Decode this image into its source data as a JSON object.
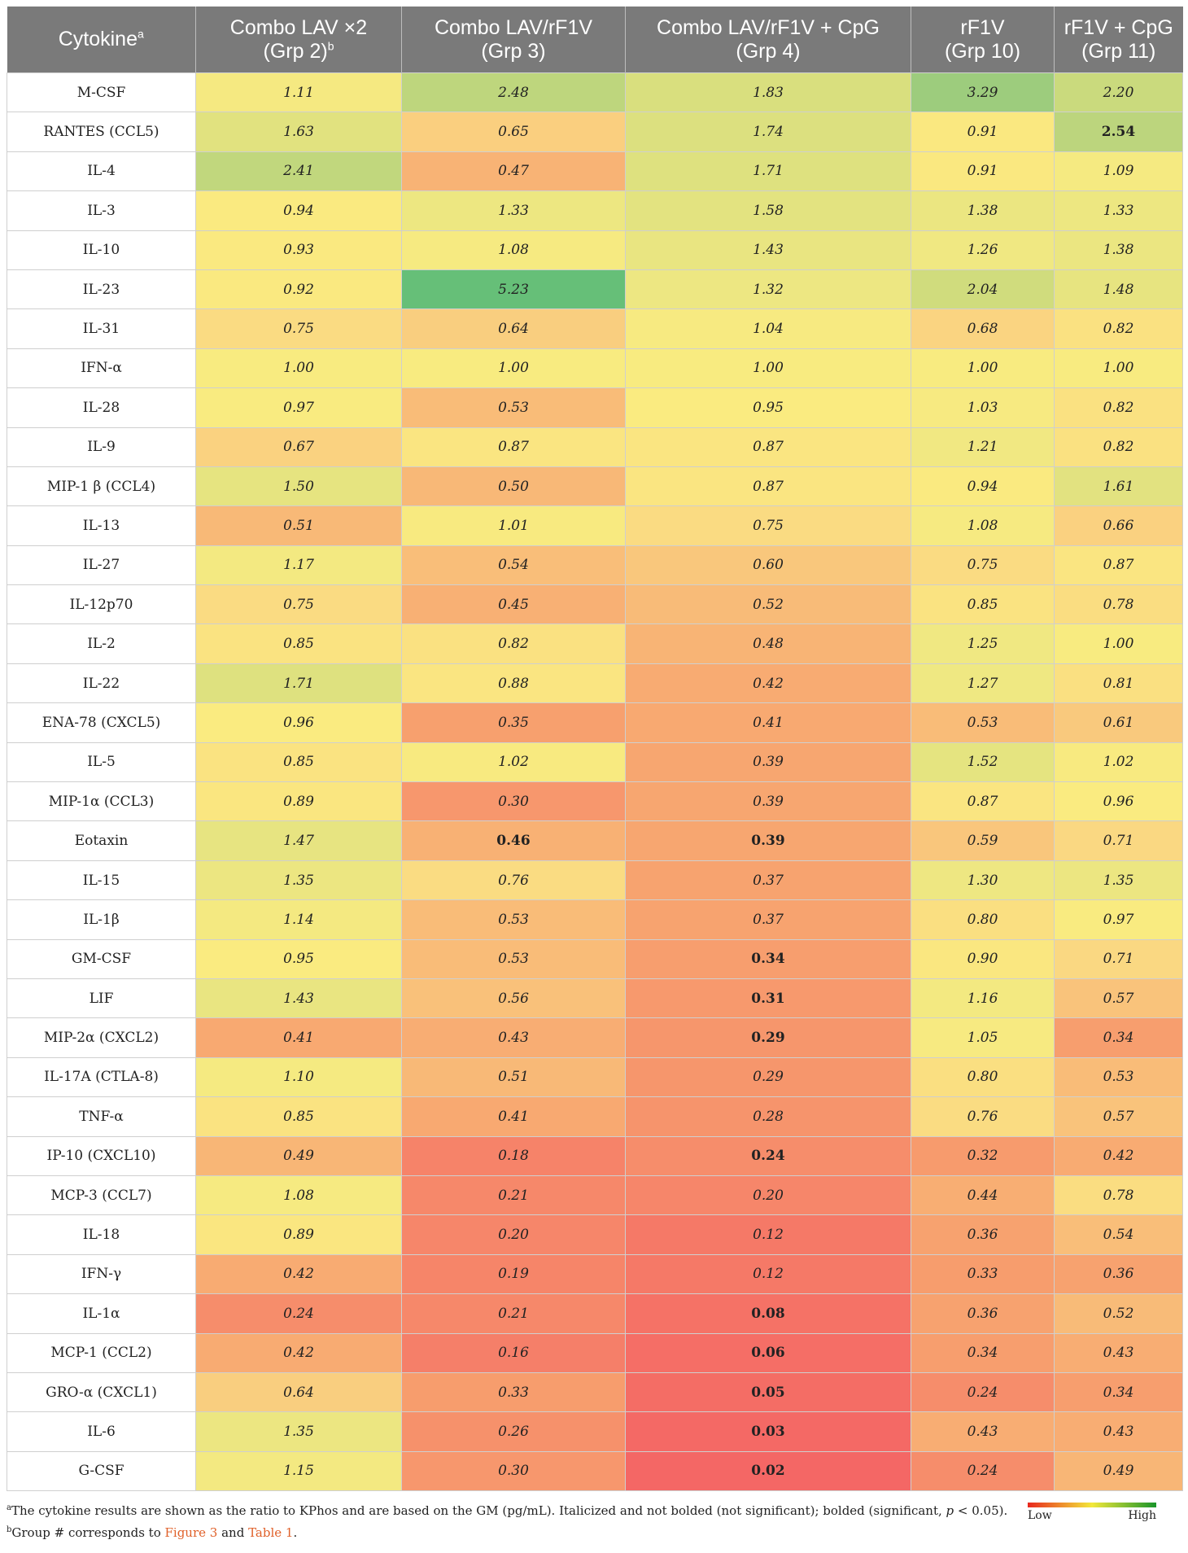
{
  "columns": [
    {
      "line1": "Cytokine",
      "line2": "",
      "sup": "a"
    },
    {
      "line1": "Combo LAV ×2",
      "line2": "(Grp 2)",
      "sup": "b"
    },
    {
      "line1": "Combo LAV/rF1V",
      "line2": "(Grp 3)",
      "sup": ""
    },
    {
      "line1": "Combo LAV/rF1V + CpG",
      "line2": "(Grp 4)",
      "sup": ""
    },
    {
      "line1": "rF1V",
      "line2": "(Grp 10)",
      "sup": ""
    },
    {
      "line1": "rF1V + CpG",
      "line2": "(Grp 11)",
      "sup": ""
    }
  ],
  "rows": [
    {
      "name": "M-CSF",
      "values": [
        1.11,
        2.48,
        1.83,
        3.29,
        2.2
      ],
      "bold": [
        false,
        false,
        false,
        false,
        false
      ]
    },
    {
      "name": "RANTES (CCL5)",
      "values": [
        1.63,
        0.65,
        1.74,
        0.91,
        2.54
      ],
      "bold": [
        false,
        false,
        false,
        false,
        true
      ]
    },
    {
      "name": "IL-4",
      "values": [
        2.41,
        0.47,
        1.71,
        0.91,
        1.09
      ],
      "bold": [
        false,
        false,
        false,
        false,
        false
      ]
    },
    {
      "name": "IL-3",
      "values": [
        0.94,
        1.33,
        1.58,
        1.38,
        1.33
      ],
      "bold": [
        false,
        false,
        false,
        false,
        false
      ]
    },
    {
      "name": "IL-10",
      "values": [
        0.93,
        1.08,
        1.43,
        1.26,
        1.38
      ],
      "bold": [
        false,
        false,
        false,
        false,
        false
      ]
    },
    {
      "name": "IL-23",
      "values": [
        0.92,
        5.23,
        1.32,
        2.04,
        1.48
      ],
      "bold": [
        false,
        false,
        false,
        false,
        false
      ]
    },
    {
      "name": "IL-31",
      "values": [
        0.75,
        0.64,
        1.04,
        0.68,
        0.82
      ],
      "bold": [
        false,
        false,
        false,
        false,
        false
      ]
    },
    {
      "name": "IFN-α",
      "values": [
        1.0,
        1.0,
        1.0,
        1.0,
        1.0
      ],
      "bold": [
        false,
        false,
        false,
        false,
        false
      ]
    },
    {
      "name": "IL-28",
      "values": [
        0.97,
        0.53,
        0.95,
        1.03,
        0.82
      ],
      "bold": [
        false,
        false,
        false,
        false,
        false
      ]
    },
    {
      "name": "IL-9",
      "values": [
        0.67,
        0.87,
        0.87,
        1.21,
        0.82
      ],
      "bold": [
        false,
        false,
        false,
        false,
        false
      ]
    },
    {
      "name": "MIP-1 β (CCL4)",
      "values": [
        1.5,
        0.5,
        0.87,
        0.94,
        1.61
      ],
      "bold": [
        false,
        false,
        false,
        false,
        false
      ]
    },
    {
      "name": "IL-13",
      "values": [
        0.51,
        1.01,
        0.75,
        1.08,
        0.66
      ],
      "bold": [
        false,
        false,
        false,
        false,
        false
      ]
    },
    {
      "name": "IL-27",
      "values": [
        1.17,
        0.54,
        0.6,
        0.75,
        0.87
      ],
      "bold": [
        false,
        false,
        false,
        false,
        false
      ]
    },
    {
      "name": "IL-12p70",
      "values": [
        0.75,
        0.45,
        0.52,
        0.85,
        0.78
      ],
      "bold": [
        false,
        false,
        false,
        false,
        false
      ]
    },
    {
      "name": "IL-2",
      "values": [
        0.85,
        0.82,
        0.48,
        1.25,
        1.0
      ],
      "bold": [
        false,
        false,
        false,
        false,
        false
      ]
    },
    {
      "name": "IL-22",
      "values": [
        1.71,
        0.88,
        0.42,
        1.27,
        0.81
      ],
      "bold": [
        false,
        false,
        false,
        false,
        false
      ]
    },
    {
      "name": "ENA-78 (CXCL5)",
      "values": [
        0.96,
        0.35,
        0.41,
        0.53,
        0.61
      ],
      "bold": [
        false,
        false,
        false,
        false,
        false
      ]
    },
    {
      "name": "IL-5",
      "values": [
        0.85,
        1.02,
        0.39,
        1.52,
        1.02
      ],
      "bold": [
        false,
        false,
        false,
        false,
        false
      ]
    },
    {
      "name": "MIP-1α (CCL3)",
      "values": [
        0.89,
        0.3,
        0.39,
        0.87,
        0.96
      ],
      "bold": [
        false,
        false,
        false,
        false,
        false
      ]
    },
    {
      "name": "Eotaxin",
      "values": [
        1.47,
        0.46,
        0.39,
        0.59,
        0.71
      ],
      "bold": [
        false,
        true,
        true,
        false,
        false
      ]
    },
    {
      "name": "IL-15",
      "values": [
        1.35,
        0.76,
        0.37,
        1.3,
        1.35
      ],
      "bold": [
        false,
        false,
        false,
        false,
        false
      ]
    },
    {
      "name": "IL-1β",
      "values": [
        1.14,
        0.53,
        0.37,
        0.8,
        0.97
      ],
      "bold": [
        false,
        false,
        false,
        false,
        false
      ]
    },
    {
      "name": "GM-CSF",
      "values": [
        0.95,
        0.53,
        0.34,
        0.9,
        0.71
      ],
      "bold": [
        false,
        false,
        true,
        false,
        false
      ]
    },
    {
      "name": "LIF",
      "values": [
        1.43,
        0.56,
        0.31,
        1.16,
        0.57
      ],
      "bold": [
        false,
        false,
        true,
        false,
        false
      ]
    },
    {
      "name": "MIP-2α (CXCL2)",
      "values": [
        0.41,
        0.43,
        0.29,
        1.05,
        0.34
      ],
      "bold": [
        false,
        false,
        true,
        false,
        false
      ]
    },
    {
      "name": "IL-17A (CTLA-8)",
      "values": [
        1.1,
        0.51,
        0.29,
        0.8,
        0.53
      ],
      "bold": [
        false,
        false,
        false,
        false,
        false
      ]
    },
    {
      "name": "TNF-α",
      "values": [
        0.85,
        0.41,
        0.28,
        0.76,
        0.57
      ],
      "bold": [
        false,
        false,
        false,
        false,
        false
      ]
    },
    {
      "name": "IP-10 (CXCL10)",
      "values": [
        0.49,
        0.18,
        0.24,
        0.32,
        0.42
      ],
      "bold": [
        false,
        false,
        true,
        false,
        false
      ]
    },
    {
      "name": "MCP-3 (CCL7)",
      "values": [
        1.08,
        0.21,
        0.2,
        0.44,
        0.78
      ],
      "bold": [
        false,
        false,
        false,
        false,
        false
      ]
    },
    {
      "name": "IL-18",
      "values": [
        0.89,
        0.2,
        0.12,
        0.36,
        0.54
      ],
      "bold": [
        false,
        false,
        false,
        false,
        false
      ]
    },
    {
      "name": "IFN-γ",
      "values": [
        0.42,
        0.19,
        0.12,
        0.33,
        0.36
      ],
      "bold": [
        false,
        false,
        false,
        false,
        false
      ]
    },
    {
      "name": "IL-1α",
      "values": [
        0.24,
        0.21,
        0.08,
        0.36,
        0.52
      ],
      "bold": [
        false,
        false,
        true,
        false,
        false
      ]
    },
    {
      "name": "MCP-1 (CCL2)",
      "values": [
        0.42,
        0.16,
        0.06,
        0.34,
        0.43
      ],
      "bold": [
        false,
        false,
        true,
        false,
        false
      ]
    },
    {
      "name": "GRO-α (CXCL1)",
      "values": [
        0.64,
        0.33,
        0.05,
        0.24,
        0.34
      ],
      "bold": [
        false,
        false,
        true,
        false,
        false
      ]
    },
    {
      "name": "IL-6",
      "values": [
        1.35,
        0.26,
        0.03,
        0.43,
        0.43
      ],
      "bold": [
        false,
        false,
        true,
        false,
        false
      ]
    },
    {
      "name": "G-CSF",
      "values": [
        1.15,
        0.3,
        0.02,
        0.24,
        0.49
      ],
      "bold": [
        false,
        false,
        true,
        false,
        false
      ]
    }
  ],
  "footnotes": {
    "a_mark": "a",
    "a_text_part1": "The cytokine results are shown as the ratio to KPhos and are based on the GM (pg/mL). Italicized and not bolded (not significant); bolded (significant, ",
    "a_text_p": "p",
    "a_text_part2": " < 0.05).",
    "b_mark": "b",
    "b_text_part1": "Group # corresponds to ",
    "b_ref1": "Figure 3",
    "b_text_part2": " and ",
    "b_ref2": "Table 1",
    "b_text_part3": "."
  },
  "legend": {
    "low_label": "Low",
    "high_label": "High",
    "colors": {
      "low": "#e8281e",
      "mid": "#f3e83a",
      "high": "#18952a"
    }
  },
  "colors": {
    "header_bg": "#7a7a7a",
    "header_text": "#ffffff"
  }
}
